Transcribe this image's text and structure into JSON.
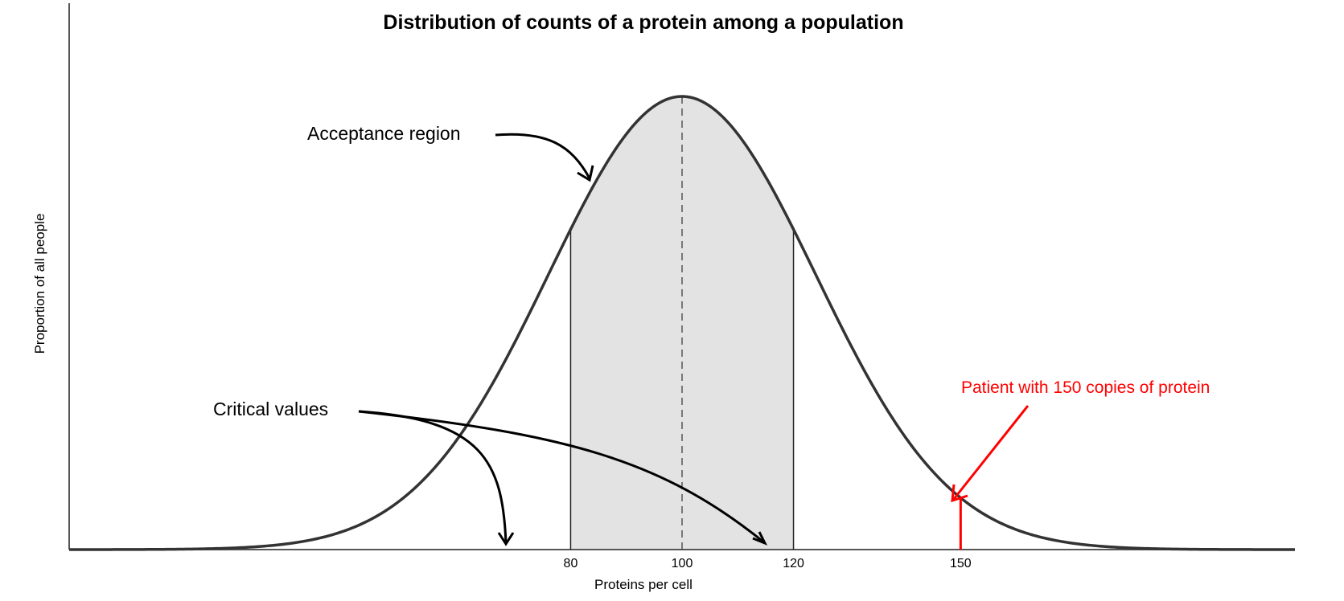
{
  "chart_data": {
    "type": "area",
    "title": "Distribution of counts of a protein among a population",
    "xlabel": "Proteins per cell",
    "ylabel": "Proportion of all people",
    "xlim": [
      -10,
      210
    ],
    "distribution": {
      "mean": 100,
      "sd": 24
    },
    "x_ticks": [
      80,
      100,
      120,
      150
    ],
    "acceptance_region": [
      80,
      120
    ],
    "critical_values": [
      80,
      120
    ],
    "patient_value": 150,
    "grid": false,
    "annotations": {
      "acceptance": "Acceptance region",
      "critical": "Critical values",
      "patient": "Patient with 150 copies of protein"
    },
    "colors": {
      "curve": "#333333",
      "fill": "#e3e3e3",
      "axis": "#555555",
      "patient": "#ff0000",
      "arrows": "#000000"
    }
  }
}
